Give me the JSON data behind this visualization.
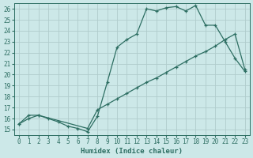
{
  "xlabel": "Humidex (Indice chaleur)",
  "bg_color": "#cce8e8",
  "line_color": "#2d6e62",
  "grid_color": "#b8d8d8",
  "xlim": [
    -0.5,
    23.5
  ],
  "ylim": [
    14.5,
    26.5
  ],
  "xticks": [
    0,
    1,
    2,
    3,
    4,
    5,
    6,
    7,
    8,
    9,
    10,
    11,
    12,
    13,
    14,
    15,
    16,
    17,
    18,
    19,
    20,
    21,
    22,
    23
  ],
  "yticks": [
    15,
    16,
    17,
    18,
    19,
    20,
    21,
    22,
    23,
    24,
    25,
    26
  ],
  "line1_x": [
    0,
    1,
    2,
    3,
    4,
    5,
    6,
    7,
    8,
    9,
    10,
    11,
    12,
    13,
    14,
    15,
    16,
    17,
    18,
    19,
    20,
    21,
    22,
    23
  ],
  "line1_y": [
    15.5,
    16.3,
    16.3,
    16.0,
    15.7,
    15.3,
    15.1,
    14.8,
    16.2,
    19.3,
    22.5,
    23.2,
    23.7,
    26.0,
    25.8,
    26.1,
    26.2,
    25.8,
    26.3,
    24.5,
    24.5,
    23.0,
    21.5,
    20.3
  ],
  "line2_x": [
    0,
    1,
    2,
    7,
    8,
    9,
    10,
    11,
    12,
    13,
    14,
    15,
    16,
    17,
    18,
    19,
    20,
    21,
    22,
    23
  ],
  "line2_y": [
    15.5,
    16.0,
    16.3,
    15.1,
    16.8,
    17.3,
    17.8,
    18.3,
    18.8,
    19.3,
    19.7,
    20.2,
    20.7,
    21.2,
    21.7,
    22.1,
    22.6,
    23.2,
    23.7,
    20.5
  ]
}
